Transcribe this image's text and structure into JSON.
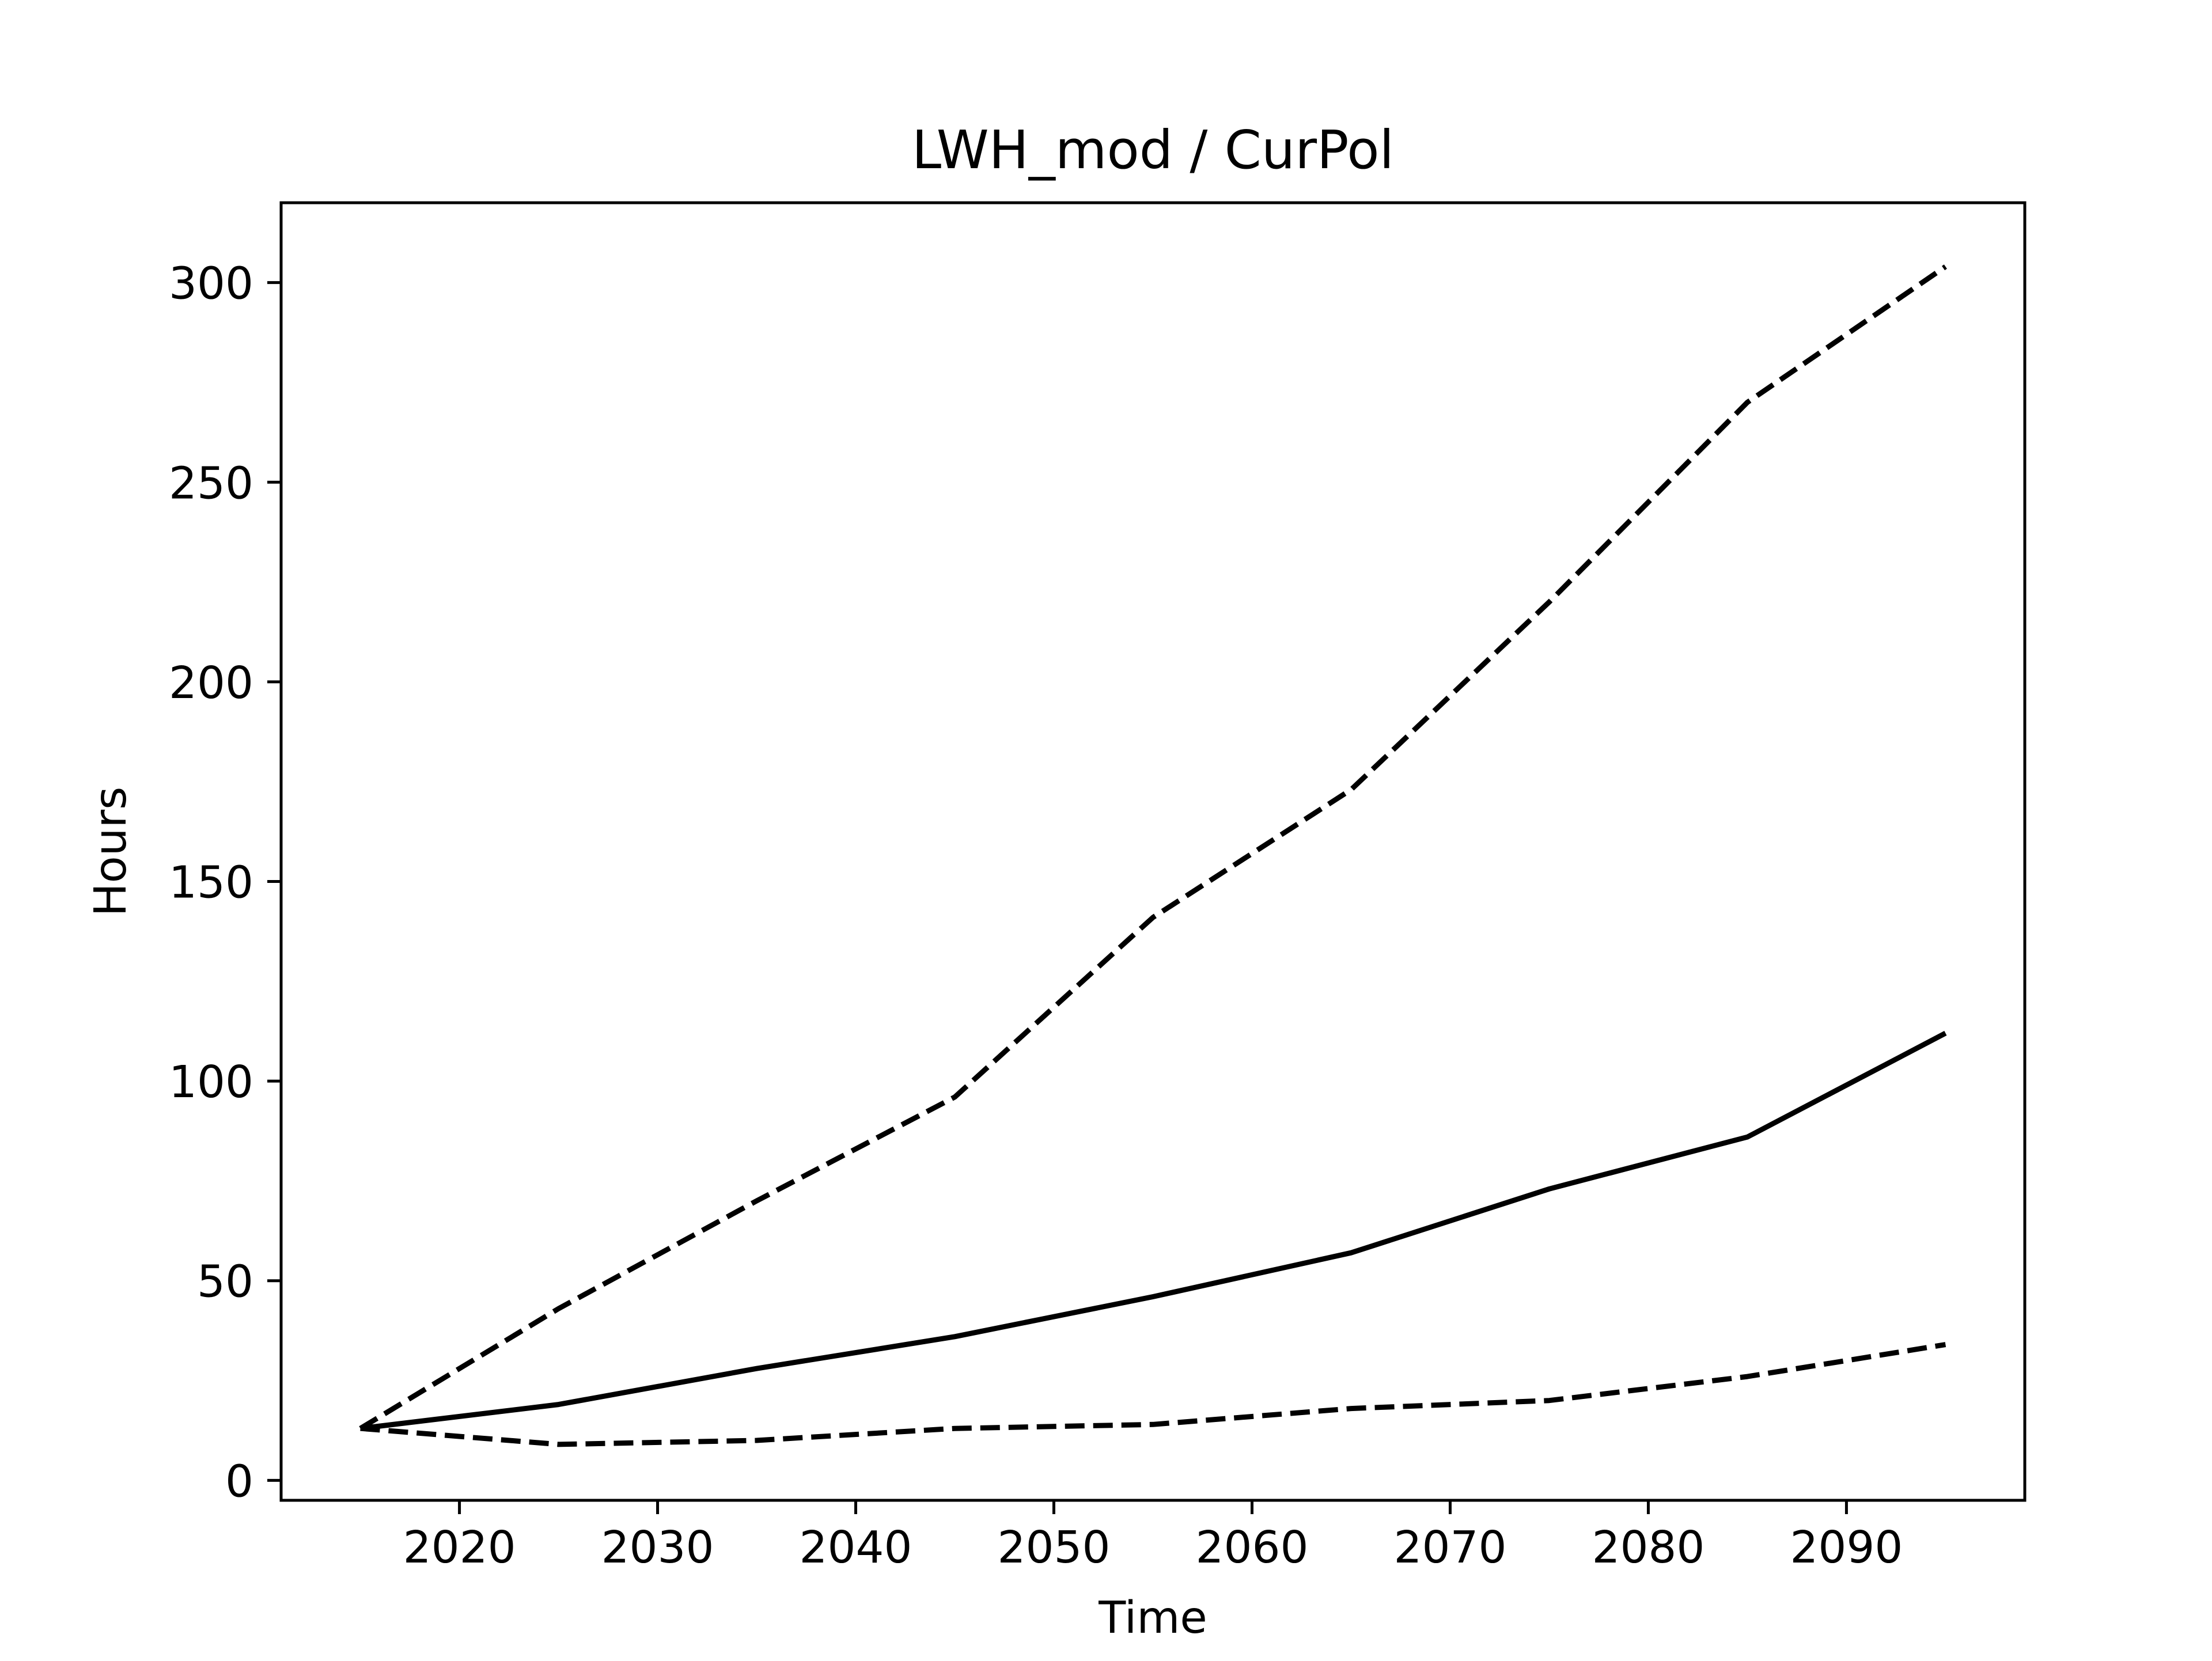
{
  "chart_data": {
    "type": "line",
    "title": "LWH_mod / CurPol",
    "xlabel": "Time",
    "ylabel": "Hours",
    "xlim": [
      2011,
      2099
    ],
    "ylim": [
      -5,
      320
    ],
    "xticks": [
      2020,
      2030,
      2040,
      2050,
      2060,
      2070,
      2080,
      2090
    ],
    "yticks": [
      0,
      50,
      100,
      150,
      200,
      250,
      300
    ],
    "grid": false,
    "x": [
      2015,
      2025,
      2035,
      2045,
      2055,
      2065,
      2075,
      2085,
      2095
    ],
    "series": [
      {
        "style": "dashed",
        "color": "#000000",
        "values": [
          13,
          43,
          70,
          96,
          141,
          173,
          220,
          270,
          304
        ]
      },
      {
        "style": "solid",
        "color": "#000000",
        "values": [
          13,
          19,
          28,
          36,
          46,
          57,
          73,
          86,
          112
        ]
      },
      {
        "style": "dashed",
        "color": "#000000",
        "values": [
          13,
          9,
          10,
          13,
          14,
          18,
          20,
          26,
          34
        ]
      }
    ]
  }
}
